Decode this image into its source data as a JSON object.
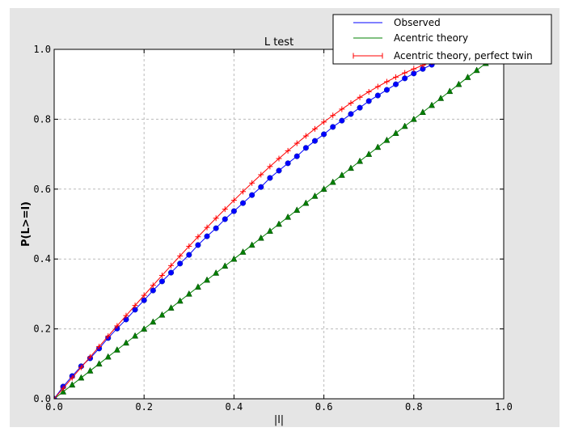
{
  "chart_data": {
    "type": "line",
    "title": "L test",
    "xlabel": "|l|",
    "ylabel": "P(L>=l)",
    "xlim": [
      0,
      1
    ],
    "ylim": [
      0,
      1
    ],
    "xticks": [
      "0.0",
      "0.2",
      "0.4",
      "0.6",
      "0.8",
      "1.0"
    ],
    "yticks": [
      "0.0",
      "0.2",
      "0.4",
      "0.6",
      "0.8",
      "1.0"
    ],
    "grid": true,
    "legend_position": "top-right",
    "x": [
      0,
      0.02,
      0.04,
      0.06,
      0.08,
      0.1,
      0.12,
      0.14,
      0.16,
      0.18,
      0.2,
      0.22,
      0.24,
      0.26,
      0.28,
      0.3,
      0.32,
      0.34,
      0.36,
      0.38,
      0.4,
      0.42,
      0.44,
      0.46,
      0.48,
      0.5,
      0.52,
      0.54,
      0.56,
      0.58,
      0.6,
      0.62,
      0.64,
      0.66,
      0.68,
      0.7,
      0.72,
      0.74,
      0.76,
      0.78,
      0.8,
      0.82,
      0.84,
      0.86,
      0.88,
      0.9,
      0.92,
      0.94,
      0.96,
      0.98,
      1.0
    ],
    "series": [
      {
        "name": "Observed",
        "color": "#0000ff",
        "marker": "circle",
        "values": [
          0,
          0.035,
          0.065,
          0.093,
          0.116,
          0.144,
          0.174,
          0.201,
          0.227,
          0.255,
          0.282,
          0.31,
          0.336,
          0.361,
          0.387,
          0.412,
          0.44,
          0.465,
          0.488,
          0.514,
          0.537,
          0.56,
          0.583,
          0.606,
          0.632,
          0.653,
          0.674,
          0.694,
          0.718,
          0.738,
          0.757,
          0.778,
          0.796,
          0.815,
          0.833,
          0.852,
          0.868,
          0.884,
          0.9,
          0.917,
          0.931,
          0.944,
          0.956,
          0.968,
          0.978,
          0.987,
          0.993,
          0.997,
          0.999,
          1.0,
          1.0
        ]
      },
      {
        "name": "Acentric theory",
        "color": "#008000",
        "marker": "triangle",
        "values": [
          0,
          0.02,
          0.04,
          0.06,
          0.08,
          0.1,
          0.12,
          0.14,
          0.16,
          0.18,
          0.2,
          0.22,
          0.24,
          0.26,
          0.28,
          0.3,
          0.32,
          0.34,
          0.36,
          0.38,
          0.4,
          0.42,
          0.44,
          0.46,
          0.48,
          0.5,
          0.52,
          0.54,
          0.56,
          0.58,
          0.6,
          0.62,
          0.64,
          0.66,
          0.68,
          0.7,
          0.72,
          0.74,
          0.76,
          0.78,
          0.8,
          0.82,
          0.84,
          0.86,
          0.88,
          0.9,
          0.92,
          0.94,
          0.96,
          0.98,
          1.0
        ]
      },
      {
        "name": "Acentric theory, perfect twin",
        "color": "#ff0000",
        "marker": "plus",
        "values": [
          0,
          0.03,
          0.06,
          0.0899,
          0.1197,
          0.1495,
          0.1791,
          0.2086,
          0.238,
          0.2671,
          0.296,
          0.3247,
          0.3531,
          0.3812,
          0.4089,
          0.4365,
          0.4636,
          0.4904,
          0.5167,
          0.5426,
          0.568,
          0.593,
          0.6174,
          0.6413,
          0.6647,
          0.6875,
          0.7097,
          0.7313,
          0.7522,
          0.7724,
          0.792,
          0.8108,
          0.8289,
          0.8462,
          0.8628,
          0.8785,
          0.8934,
          0.9074,
          0.9205,
          0.9327,
          0.944,
          0.9543,
          0.9636,
          0.972,
          0.9793,
          0.9855,
          0.9907,
          0.9947,
          0.9976,
          0.9994,
          1.0
        ]
      }
    ]
  }
}
